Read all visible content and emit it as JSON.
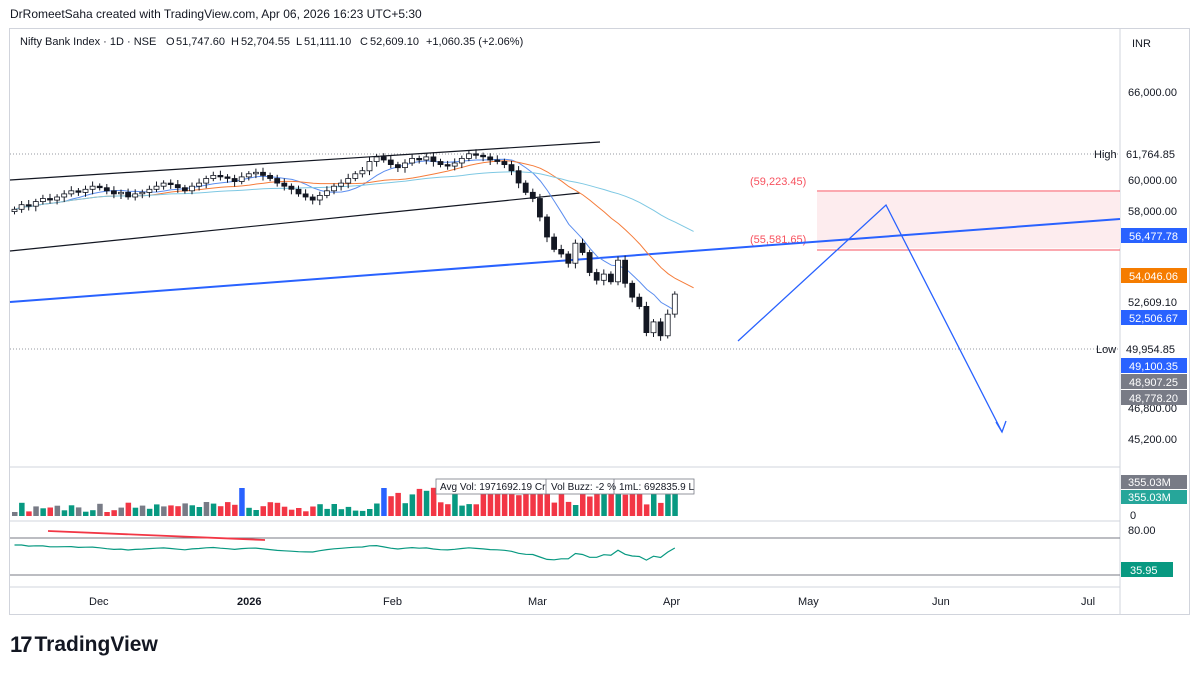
{
  "header": {
    "text": "DrRomeetSaha created with TradingView.com, Apr 06, 2026 16:23 UTC+5:30"
  },
  "symbol": {
    "title": "Nifty Bank Index · 1D · NSE",
    "o_label": "O",
    "o_value": "51,747.60",
    "h_label": "H",
    "h_value": "52,704.55",
    "l_label": "L",
    "l_value": "51,111.10",
    "c_label": "C",
    "c_value": "52,609.10",
    "change": "+1,060.35 (+2.06%)",
    "change_color": "#089981"
  },
  "currency": "INR",
  "logo_text": "TradingView",
  "chart_data": [
    {
      "type": "candlestick",
      "yticks": [
        "66,000.00",
        "60,000.00",
        "58,000.00",
        "52,609.10",
        "46,800.00",
        "45,200.00"
      ],
      "xticks": [
        "Dec",
        "2026",
        "Feb",
        "Mar",
        "Apr",
        "May",
        "Jun",
        "Jul"
      ],
      "ylim": [
        44000,
        68500
      ],
      "high_label": "High",
      "high_value": "61,764.85",
      "low_label": "Low",
      "low_value": "49,954.85",
      "price_tags": [
        {
          "value": "56,477.78",
          "color": "#2962ff"
        },
        {
          "value": "54,046.06",
          "color": "#f7525f"
        },
        {
          "value": "52,506.67",
          "color": "#2962ff"
        },
        {
          "value": "49,100.35",
          "color": "#2962ff"
        },
        {
          "value": "48,907.25",
          "color": "#787b86"
        },
        {
          "value": "48,778.20",
          "color": "#787b86"
        }
      ],
      "zone_labels": [
        "(59,223.45)",
        "(55,581.65)"
      ],
      "zone": {
        "top": 59223.45,
        "bottom": 55581.65,
        "color": "#f7525f"
      },
      "close_series": [
        58100,
        58400,
        58300,
        58600,
        58800,
        58700,
        58900,
        59100,
        59300,
        59200,
        59400,
        59600,
        59500,
        59300,
        59100,
        59200,
        58900,
        59100,
        59200,
        59400,
        59600,
        59800,
        59700,
        59500,
        59300,
        59600,
        59800,
        60100,
        60300,
        60200,
        60100,
        59900,
        60200,
        60400,
        60500,
        60300,
        60100,
        59800,
        59600,
        59400,
        59100,
        58900,
        58700,
        59000,
        59300,
        59600,
        59800,
        60100,
        60400,
        60600,
        61200,
        61500,
        61300,
        61000,
        60800,
        61100,
        61400,
        61300,
        61500,
        61200,
        61000,
        60900,
        61100,
        61400,
        61700,
        61600,
        61500,
        61300,
        61200,
        61000,
        60600,
        59800,
        59200,
        58800,
        57600,
        56300,
        55500,
        55200,
        54600,
        55900,
        55300,
        54000,
        53500,
        53900,
        53400,
        54800,
        53300,
        52400,
        51800,
        50100,
        50800,
        49900,
        51300,
        52600
      ],
      "colors": {
        "up": "#ffffff",
        "down": "#131722",
        "ma_orange": "#f57c3a",
        "ma_lightblue": "#7ec8e3",
        "ma_blue": "#5b8def",
        "trend": "#2962ff",
        "channel": "#131722"
      },
      "projection": [
        [
          "2026-04-14",
          50400
        ],
        [
          "2026-05-20",
          58400
        ],
        [
          "2026-06-15",
          45500
        ]
      ],
      "indicator_label": "Avg Vol: 1971692.19 Cr | Vol Buzz: -2 % | 1mL: 692835.9 L",
      "indicator_label_parts": [
        "Avg Vol: 1971692.19 Cr",
        "Vol Buzz: -2 %",
        "1mL: 692835.9 L"
      ],
      "volume_tags": [
        "355.03M",
        "355.03M"
      ],
      "volume_zero": "0",
      "rsi_ticks": [
        "80.00"
      ],
      "rsi_value": "35.95",
      "rsi_value_color": "#089981"
    }
  ]
}
